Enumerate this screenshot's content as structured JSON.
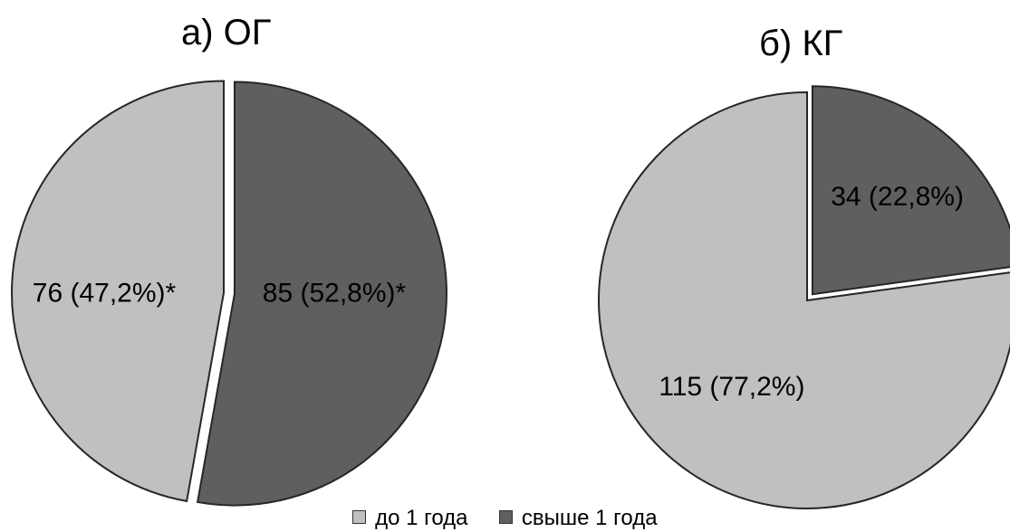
{
  "chart_data": [
    {
      "type": "pie",
      "title": "а) ОГ",
      "slices": [
        {
          "category": "до 1 года",
          "value": 76,
          "percent": 47.2,
          "label": "76 (47,2%)*"
        },
        {
          "category": "свыше 1 года",
          "value": 85,
          "percent": 52.8,
          "label": "85 (52,8%)*"
        }
      ]
    },
    {
      "type": "pie",
      "title": "б) КГ",
      "slices": [
        {
          "category": "до 1 года",
          "value": 115,
          "percent": 77.2,
          "label": "115 (77,2%)"
        },
        {
          "category": "свыше 1 года",
          "value": 34,
          "percent": 22.8,
          "label": "34 (22,8%)"
        }
      ]
    }
  ],
  "legend": [
    {
      "label": "до 1 года",
      "color": "#c0c0c0"
    },
    {
      "label": "свыше 1 года",
      "color": "#5f5f5f"
    }
  ],
  "colors": {
    "до 1 года": "#c0c0c0",
    "свыше 1 года": "#5f5f5f",
    "outline": "#262626"
  }
}
